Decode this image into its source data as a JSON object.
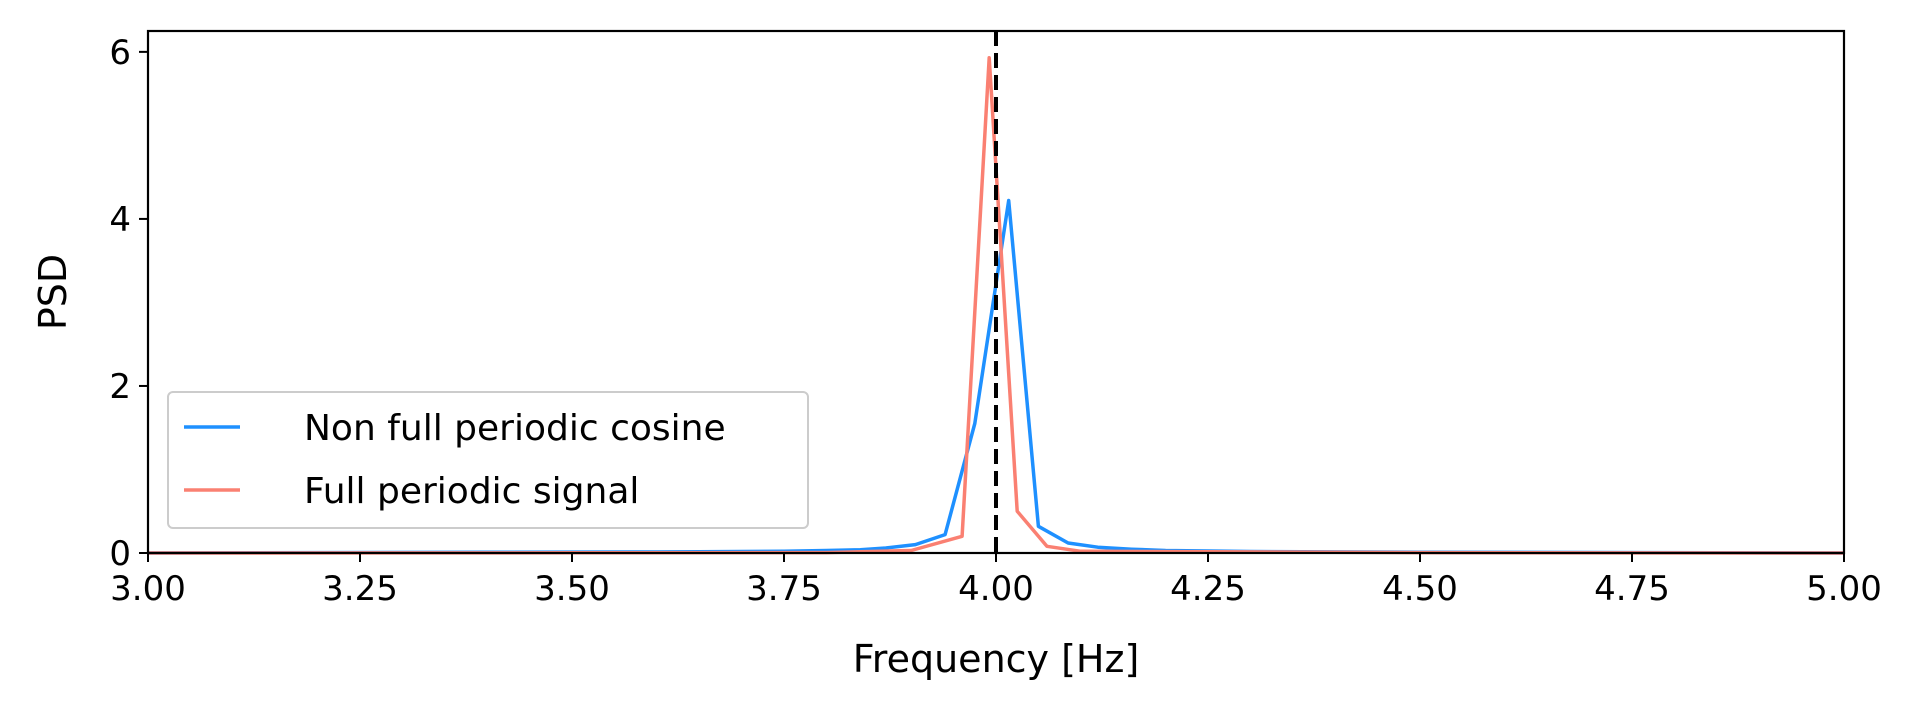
{
  "chart_data": {
    "type": "line",
    "title": "",
    "xlabel": "Frequency [Hz]",
    "ylabel": "PSD",
    "xlim": [
      3.0,
      5.0
    ],
    "ylim": [
      0,
      6.25
    ],
    "x_ticks": [
      3.0,
      3.25,
      3.5,
      3.75,
      4.0,
      4.25,
      4.5,
      4.75,
      5.0
    ],
    "x_tick_labels": [
      "3.00",
      "3.25",
      "3.50",
      "3.75",
      "4.00",
      "4.25",
      "4.50",
      "4.75",
      "5.00"
    ],
    "y_ticks": [
      0,
      2,
      4,
      6
    ],
    "y_tick_labels": [
      "0",
      "2",
      "4",
      "6"
    ],
    "grid": false,
    "legend": {
      "placement": "lower-left"
    },
    "reference_lines": [
      {
        "axis": "x",
        "value": 4.0,
        "style": "dashed",
        "color": "#000000"
      }
    ],
    "series": [
      {
        "name": "Non full periodic cosine",
        "color": "#1e90ff",
        "x": [
          3.0,
          3.2,
          3.4,
          3.6,
          3.7,
          3.75,
          3.8,
          3.84,
          3.87,
          3.905,
          3.94,
          3.975,
          4.015,
          4.05,
          4.085,
          4.12,
          4.16,
          4.2,
          4.3,
          4.5,
          4.7,
          5.0
        ],
        "y": [
          0.0,
          0.005,
          0.008,
          0.012,
          0.018,
          0.022,
          0.03,
          0.04,
          0.06,
          0.1,
          0.22,
          1.55,
          4.22,
          0.32,
          0.12,
          0.07,
          0.045,
          0.03,
          0.018,
          0.01,
          0.006,
          0.0
        ]
      },
      {
        "name": "Full periodic signal",
        "color": "#fa8072",
        "x": [
          3.0,
          3.5,
          3.8,
          3.9,
          3.96,
          3.992,
          4.025,
          4.06,
          4.1,
          4.5,
          5.0
        ],
        "y": [
          0.0,
          0.002,
          0.005,
          0.03,
          0.2,
          5.93,
          0.5,
          0.08,
          0.02,
          0.005,
          0.0
        ]
      }
    ]
  }
}
